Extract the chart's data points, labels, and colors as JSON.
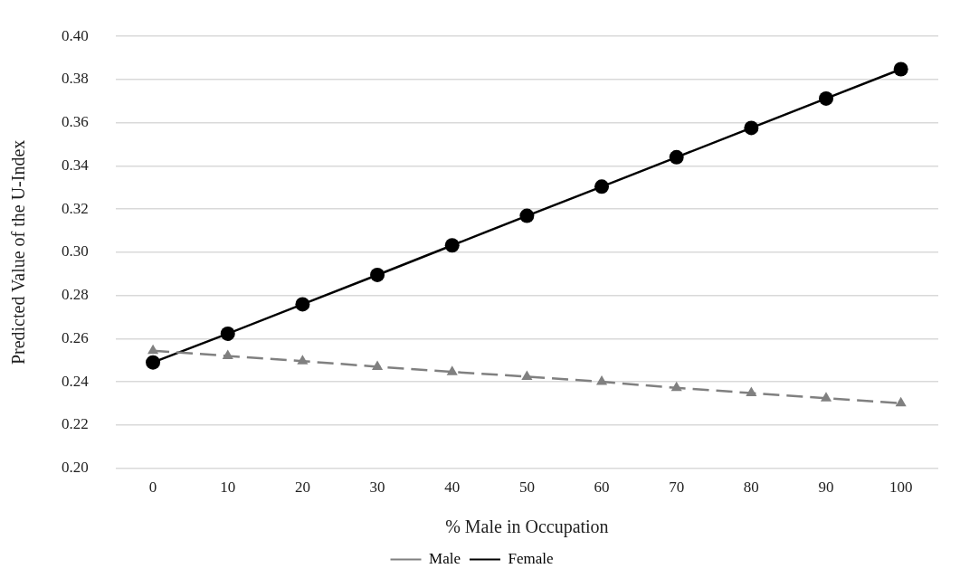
{
  "chart_data": {
    "type": "line",
    "xlabel": "% Male in Occupation",
    "ylabel": "Predicted Value of the U-Index",
    "categories": [
      "0",
      "10",
      "20",
      "30",
      "40",
      "50",
      "60",
      "70",
      "80",
      "90",
      "100"
    ],
    "series": [
      {
        "name": "Male",
        "color": "#808080",
        "marker": "triangle",
        "line_style": "dashed",
        "values": [
          0.2544,
          0.252,
          0.2496,
          0.247,
          0.2446,
          0.2424,
          0.24,
          0.2372,
          0.2348,
          0.2324,
          0.2301
        ]
      },
      {
        "name": "Female",
        "color": "#000000",
        "marker": "circle",
        "line_style": "solid",
        "values": [
          0.249,
          0.2623,
          0.2759,
          0.2895,
          0.3032,
          0.3169,
          0.3304,
          0.344,
          0.3576,
          0.3712,
          0.3848
        ]
      }
    ],
    "ylim": [
      0.2,
      0.4
    ],
    "yticks": [
      {
        "value": 0.2,
        "label": "0.20"
      },
      {
        "value": 0.22,
        "label": "0.22"
      },
      {
        "value": 0.24,
        "label": "0.24"
      },
      {
        "value": 0.26,
        "label": "0.26"
      },
      {
        "value": 0.28,
        "label": "0.28"
      },
      {
        "value": 0.3,
        "label": "0.30"
      },
      {
        "value": 0.32,
        "label": "0.32"
      },
      {
        "value": 0.34,
        "label": "0.34"
      },
      {
        "value": 0.36,
        "label": "0.36"
      },
      {
        "value": 0.38,
        "label": "0.38"
      },
      {
        "value": 0.4,
        "label": "0.40"
      }
    ],
    "grid": "y",
    "legend": "bottom"
  }
}
